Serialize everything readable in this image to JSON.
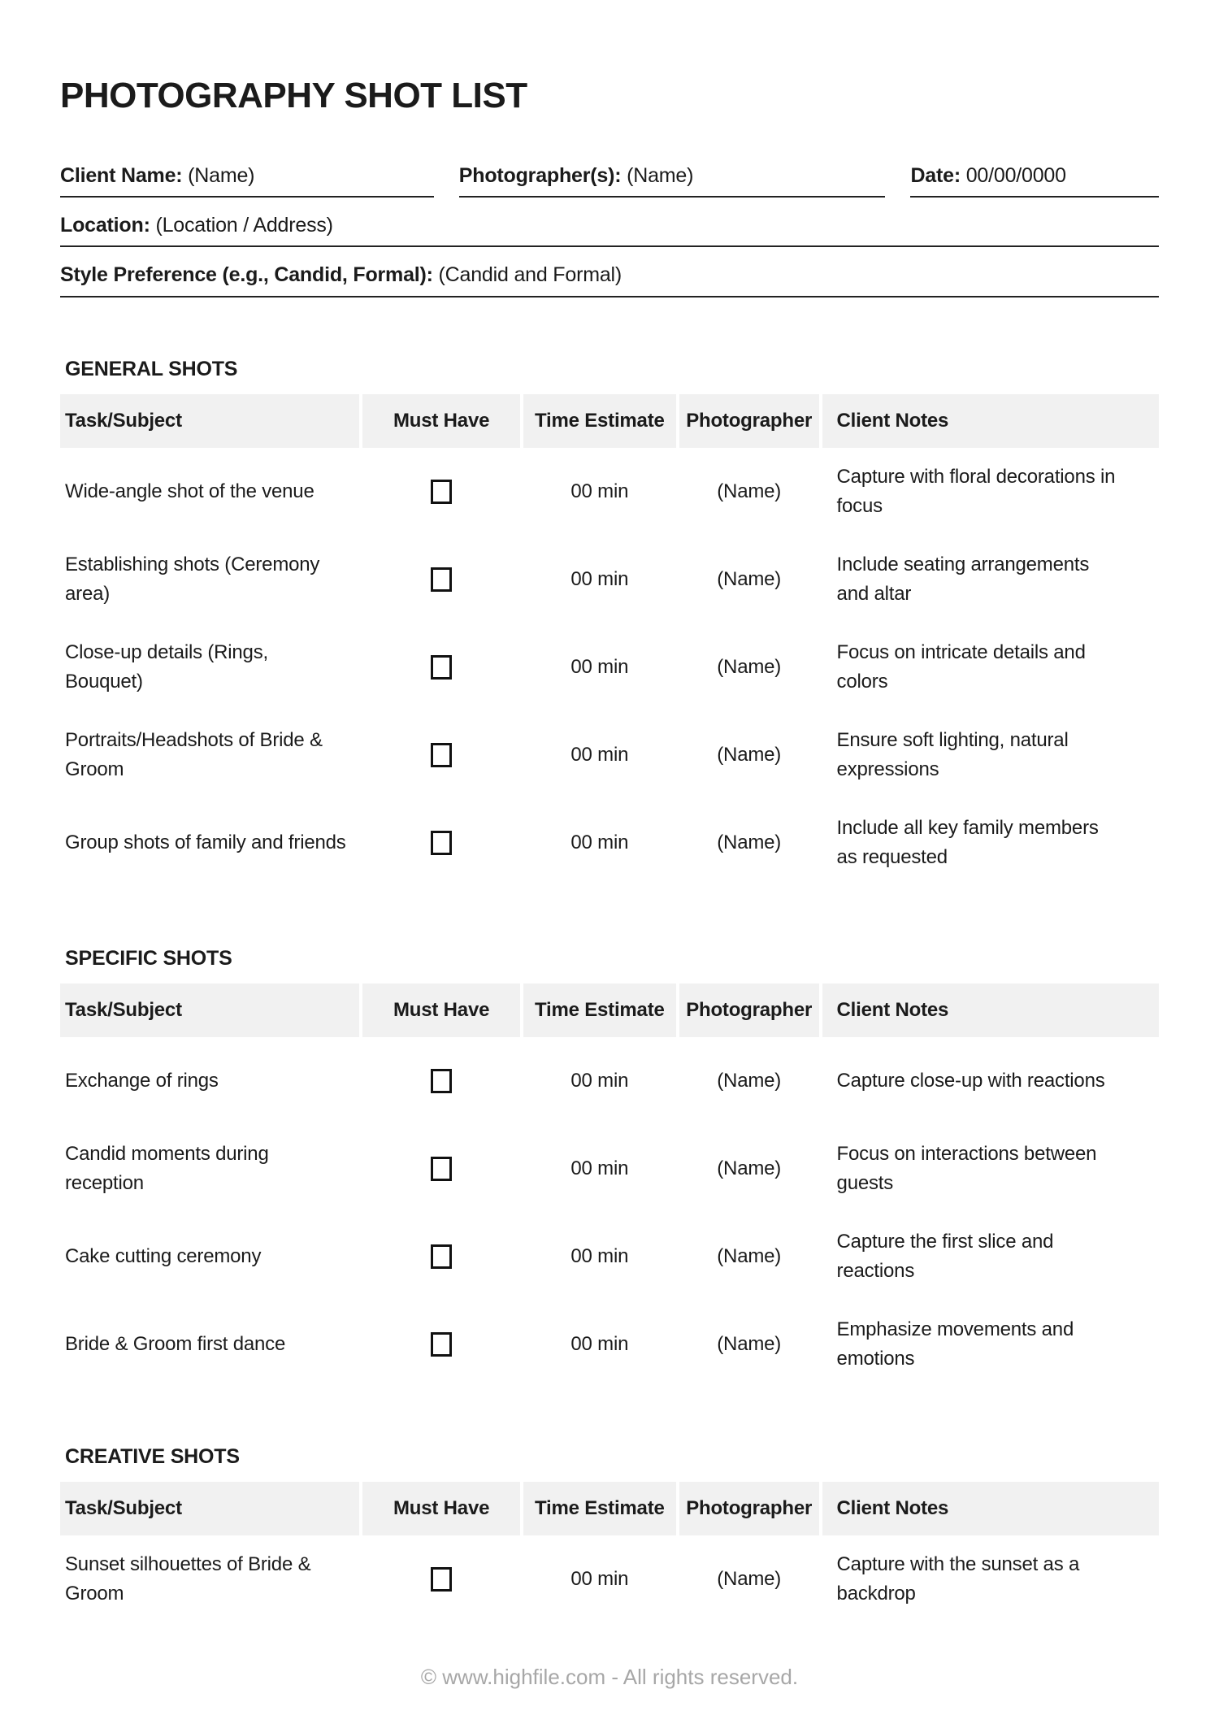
{
  "page": {
    "title": "PHOTOGRAPHY SHOT LIST",
    "footer": "© www.highfile.com - All rights reserved."
  },
  "fields": {
    "client_name": {
      "label": "Client Name:",
      "value": "(Name)"
    },
    "photographers": {
      "label": "Photographer(s):",
      "value": "(Name)"
    },
    "date": {
      "label": "Date:",
      "value": "00/00/0000"
    },
    "location": {
      "label": "Location:",
      "value": "(Location / Address)"
    },
    "style_preference": {
      "label": "Style Preference (e.g., Candid, Formal):",
      "value": "(Candid and Formal)"
    }
  },
  "table_columns": [
    "Task/Subject",
    "Must Have",
    "Time Estimate",
    "Photographer",
    "Client Notes"
  ],
  "sections": [
    {
      "heading": "GENERAL SHOTS",
      "rows": [
        {
          "task": "Wide-angle shot of the venue",
          "must_have": false,
          "time": "00 min",
          "photographer": "(Name)",
          "notes": "Capture with floral decorations in focus"
        },
        {
          "task": "Establishing shots (Ceremony area)",
          "must_have": false,
          "time": "00 min",
          "photographer": "(Name)",
          "notes": "Include seating arrangements and altar"
        },
        {
          "task": "Close-up details (Rings, Bouquet)",
          "must_have": false,
          "time": "00 min",
          "photographer": "(Name)",
          "notes": "Focus on intricate details and colors"
        },
        {
          "task": "Portraits/Headshots of Bride & Groom",
          "must_have": false,
          "time": "00 min",
          "photographer": "(Name)",
          "notes": "Ensure soft lighting, natural expressions"
        },
        {
          "task": "Group shots of family and friends",
          "must_have": false,
          "time": "00 min",
          "photographer": "(Name)",
          "notes": "Include all key family members as requested"
        }
      ]
    },
    {
      "heading": "SPECIFIC SHOTS",
      "rows": [
        {
          "task": "Exchange of rings",
          "must_have": false,
          "time": "00 min",
          "photographer": "(Name)",
          "notes": "Capture close-up with reactions"
        },
        {
          "task": "Candid moments during reception",
          "must_have": false,
          "time": "00 min",
          "photographer": "(Name)",
          "notes": "Focus on interactions between guests"
        },
        {
          "task": "Cake cutting ceremony",
          "must_have": false,
          "time": "00 min",
          "photographer": "(Name)",
          "notes": "Capture the first slice and reactions"
        },
        {
          "task": "Bride & Groom first dance",
          "must_have": false,
          "time": "00 min",
          "photographer": "(Name)",
          "notes": "Emphasize movements and emotions"
        }
      ]
    },
    {
      "heading": "CREATIVE SHOTS",
      "rows": [
        {
          "task": "Sunset silhouettes of Bride & Groom",
          "must_have": false,
          "time": "00 min",
          "photographer": "(Name)",
          "notes": "Capture with the sunset as a backdrop"
        }
      ]
    }
  ],
  "colors": {
    "table_header_bg": "#f1f1f1",
    "text": "#1b1b1b",
    "line": "#222222",
    "footer_text": "#a7a7a7"
  }
}
